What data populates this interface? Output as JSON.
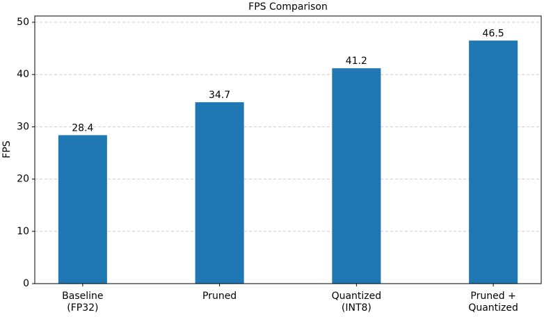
{
  "chart_data": {
    "type": "bar",
    "title": "FPS Comparison",
    "y_label": "FPS",
    "categories": [
      "Baseline\n(FP32)",
      "Pruned",
      "Quantized\n(INT8)",
      "Pruned +\nQuantized"
    ],
    "values": [
      28.4,
      34.7,
      41.2,
      46.5
    ],
    "color": "#1f77b4",
    "ylim": [
      0,
      51.2
    ],
    "yticks": [
      0,
      10,
      20,
      30,
      40,
      50
    ],
    "grid": true,
    "show_values": true
  }
}
